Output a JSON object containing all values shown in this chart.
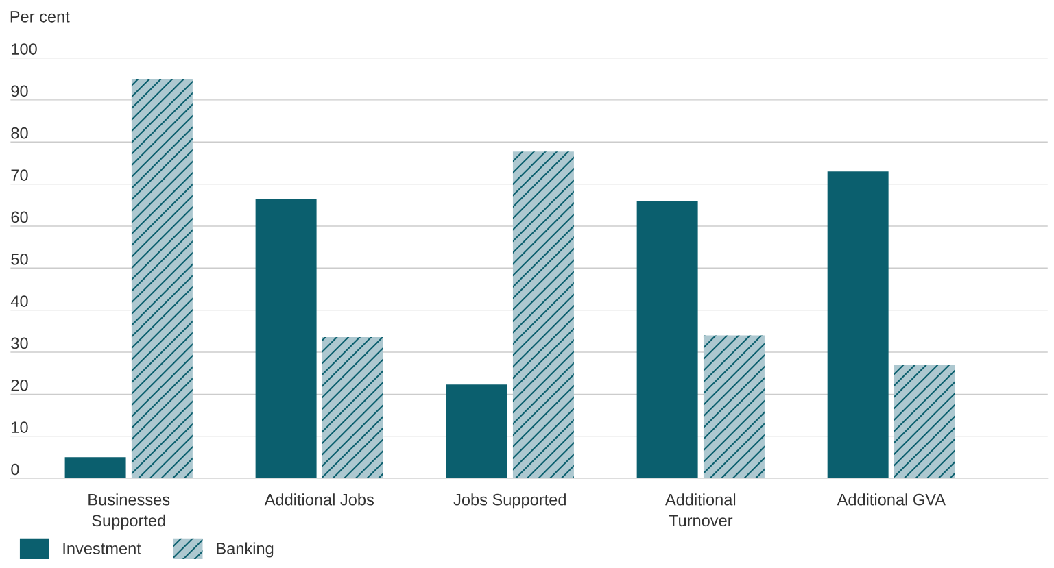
{
  "chart_data": {
    "type": "bar",
    "ylabel": "Per cent",
    "categories": [
      "Businesses\nSupported",
      "Additional Jobs",
      "Jobs Supported",
      "Additional\nTurnover",
      "Additional GVA"
    ],
    "series": [
      {
        "name": "Investment",
        "color": "#0b5f6e",
        "values": [
          5,
          66.4,
          22.3,
          66,
          73
        ]
      },
      {
        "name": "Banking",
        "color": "#adc8d0",
        "values": [
          95,
          33.6,
          77.7,
          34,
          27
        ]
      }
    ],
    "ylim": [
      0,
      100
    ],
    "yticks": [
      0,
      10,
      20,
      30,
      40,
      50,
      60,
      70,
      80,
      90,
      100
    ],
    "grid": "y",
    "legend": "bottom left"
  }
}
